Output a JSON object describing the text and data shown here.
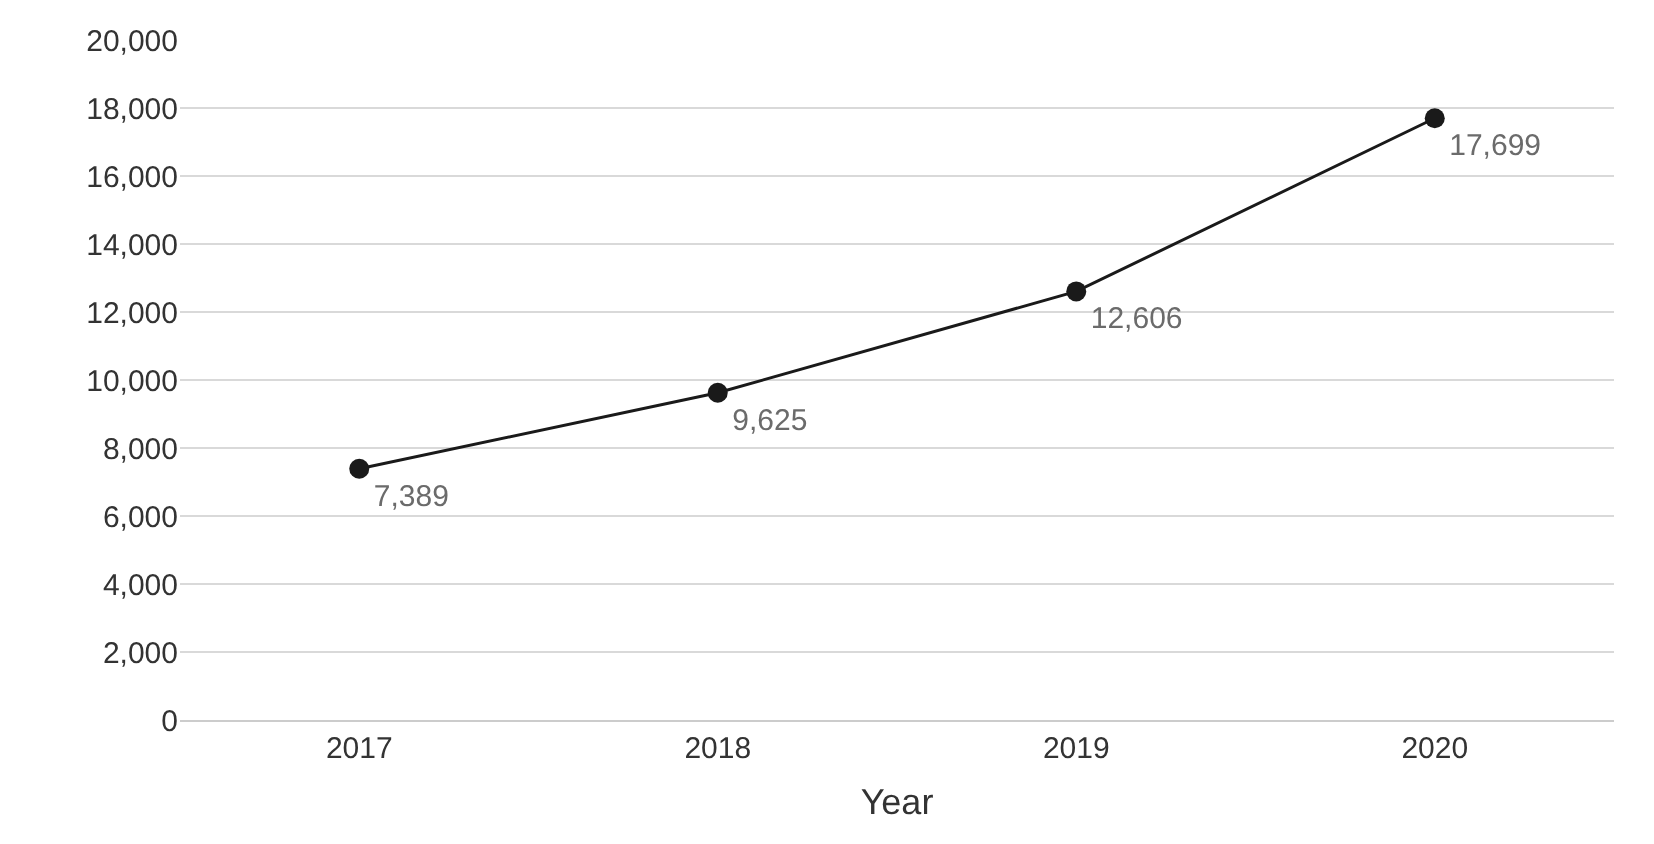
{
  "chart_data": {
    "type": "line",
    "xlabel": "Year",
    "categories": [
      "2017",
      "2018",
      "2019",
      "2020"
    ],
    "values": [
      7389,
      9625,
      12606,
      17699
    ],
    "color": "#1a1a1a",
    "value_labels": [
      "7,389",
      "9,625",
      "12,606",
      "17,699"
    ],
    "ylim": [
      0,
      20000
    ],
    "yticks": [
      {
        "value": 0,
        "label": "0"
      },
      {
        "value": 2000,
        "label": "2,000"
      },
      {
        "value": 4000,
        "label": "4,000"
      },
      {
        "value": 6000,
        "label": "6,000"
      },
      {
        "value": 8000,
        "label": "8,000"
      },
      {
        "value": 10000,
        "label": "10,000"
      },
      {
        "value": 12000,
        "label": "12,000"
      },
      {
        "value": 14000,
        "label": "14,000"
      },
      {
        "value": 16000,
        "label": "16,000"
      },
      {
        "value": 18000,
        "label": "18,000"
      },
      {
        "value": 20000,
        "label": "20,000"
      }
    ],
    "grid": "y",
    "marker": "circle",
    "line_style": "solid",
    "legend": false
  }
}
